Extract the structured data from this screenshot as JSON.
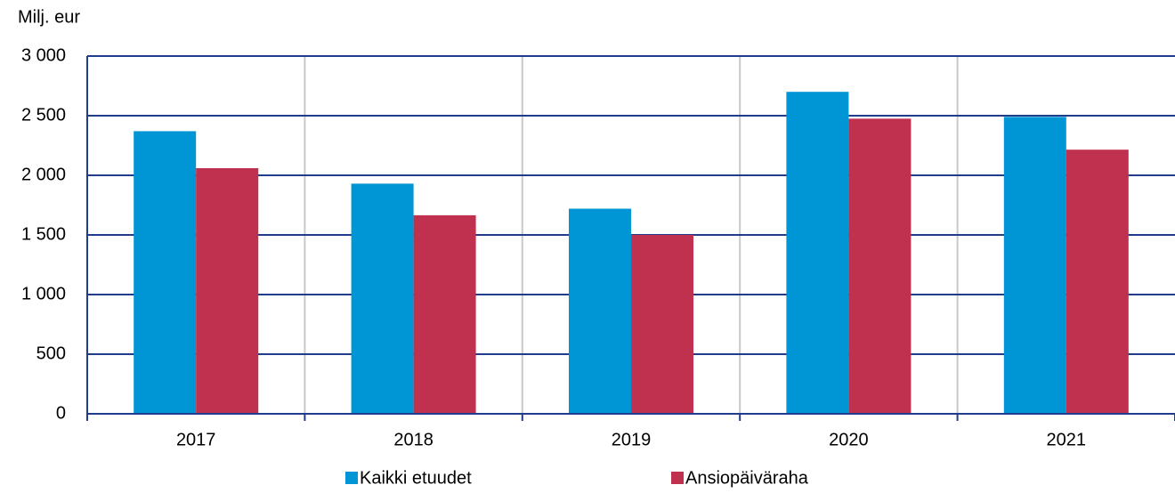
{
  "chart_data": {
    "type": "bar",
    "y_label": "Milj. eur",
    "categories": [
      "2017",
      "2018",
      "2019",
      "2020",
      "2021"
    ],
    "series": [
      {
        "name": "Kaikki etuudet",
        "color": "#0096d6",
        "values": [
          2370,
          1930,
          1720,
          2700,
          2490
        ]
      },
      {
        "name": "Ansiopäiväraha",
        "color": "#c0304f",
        "values": [
          2060,
          1665,
          1500,
          2475,
          2215
        ]
      }
    ],
    "ylim": [
      0,
      3000
    ],
    "yticks": [
      0,
      500,
      {
        "value": 1000,
        "label": "1 000"
      },
      {
        "value": 1500,
        "label": "1 500"
      },
      {
        "value": 2000,
        "label": "2 000"
      },
      {
        "value": 2500,
        "label": "2 500"
      },
      {
        "value": 3000,
        "label": "3 000"
      }
    ],
    "grid": true
  }
}
